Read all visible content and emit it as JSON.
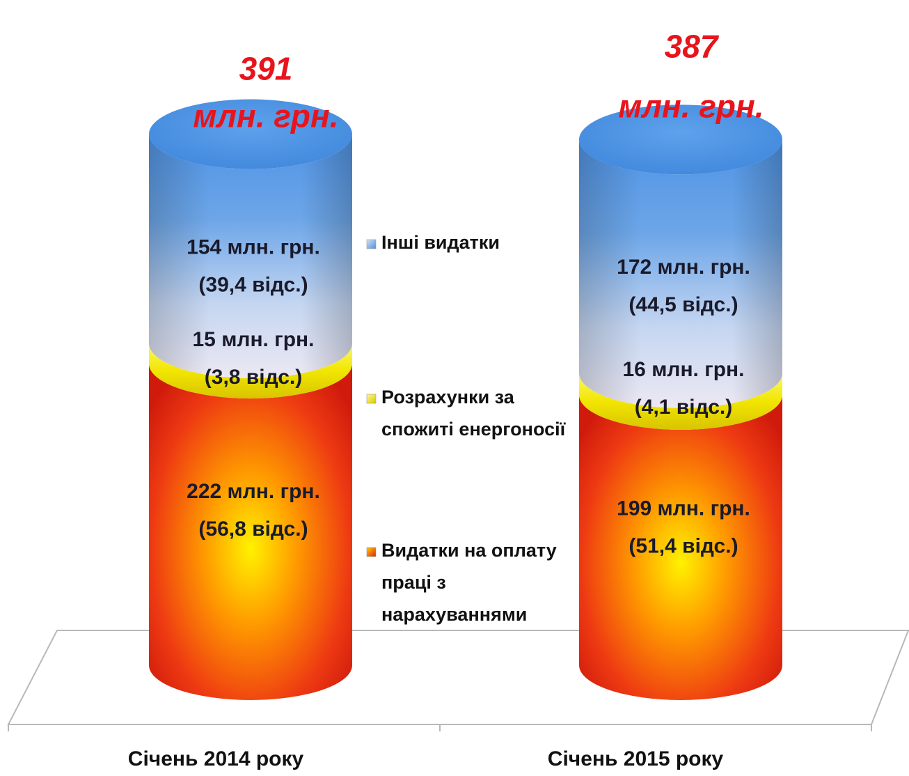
{
  "chart_data": {
    "type": "bar",
    "subtype": "stacked-cylinder-3d",
    "categories": [
      "Січень 2014 року",
      "Січень 2015 року"
    ],
    "totals": [
      {
        "value": 391,
        "unit": "млн. грн."
      },
      {
        "value": 387,
        "unit": "млн. грн."
      }
    ],
    "series": [
      {
        "name": "Видатки на оплату праці з нарахуваннями",
        "legend_lines": [
          "Видатки на оплату",
          "праці з",
          "нарахуваннями"
        ],
        "color": "#e8281a",
        "values": [
          222,
          199
        ],
        "labels": [
          [
            "222 млн. грн.",
            "(56,8 відс.)"
          ],
          [
            "199 млн. грн.",
            "(51,4 відс.)"
          ]
        ]
      },
      {
        "name": "Розрахунки за спожиті енергоносії",
        "legend_lines": [
          "Розрахунки за",
          "спожиті енергоносії"
        ],
        "color": "#f2ee1a",
        "values": [
          15,
          16
        ],
        "labels": [
          [
            "15 млн. грн.",
            "(3,8 відс.)"
          ],
          [
            "16 млн. грн.",
            "(4,1 відс.)"
          ]
        ]
      },
      {
        "name": "Інші видатки",
        "legend_lines": [
          "Інші видатки"
        ],
        "color": "#5b9bdf",
        "values": [
          154,
          172
        ],
        "labels": [
          [
            "154 млн. грн.",
            "(39,4 відс.)"
          ],
          [
            "172 млн. грн.",
            "(44,5 відс.)"
          ]
        ]
      }
    ],
    "legend_position": "center",
    "grid": false,
    "total_color": "#e8141c"
  }
}
